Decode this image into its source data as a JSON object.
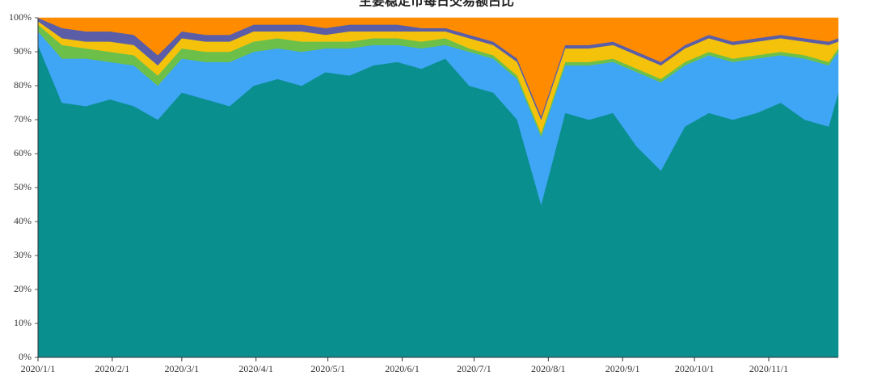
{
  "chart_data": {
    "type": "stacked-area",
    "title": "主要稳定币每日交易额占比",
    "x": [
      "2020/1/1",
      "2020/1/11",
      "2020/1/21",
      "2020/1/31",
      "2020/2/10",
      "2020/2/20",
      "2020/3/1",
      "2020/3/11",
      "2020/3/21",
      "2020/3/31",
      "2020/4/10",
      "2020/4/20",
      "2020/4/30",
      "2020/5/10",
      "2020/5/20",
      "2020/5/30",
      "2020/6/9",
      "2020/6/19",
      "2020/6/29",
      "2020/7/9",
      "2020/7/19",
      "2020/7/29",
      "2020/8/8",
      "2020/8/18",
      "2020/8/28",
      "2020/9/7",
      "2020/9/17",
      "2020/9/27",
      "2020/10/7",
      "2020/10/17",
      "2020/10/27",
      "2020/11/6",
      "2020/11/16",
      "2020/11/26",
      "2020/11/30"
    ],
    "series": [
      {
        "color": "#0a8f8f",
        "values": [
          92,
          75,
          74,
          76,
          74,
          70,
          78,
          76,
          74,
          80,
          82,
          80,
          84,
          83,
          86,
          87,
          85,
          88,
          80,
          78,
          70,
          45,
          72,
          70,
          72,
          62,
          55,
          68,
          72,
          70,
          72,
          75,
          70,
          68,
          78
        ]
      },
      {
        "color": "#3fa5f5",
        "values": [
          4,
          13,
          14,
          11,
          12,
          10,
          10,
          11,
          13,
          10,
          9,
          10,
          7,
          8,
          6,
          5,
          6,
          4,
          10,
          10,
          12,
          20,
          14,
          16,
          15,
          22,
          26,
          18,
          17,
          17,
          16,
          14,
          18,
          18,
          12
        ]
      },
      {
        "color": "#6cc04a",
        "values": [
          2,
          4,
          3,
          3,
          3,
          3,
          3,
          3,
          3,
          3,
          3,
          3,
          2,
          2,
          2,
          2,
          2,
          2,
          1,
          1,
          1,
          1,
          1,
          1,
          1,
          1,
          1,
          1,
          1,
          1,
          1,
          1,
          1,
          1,
          1
        ]
      },
      {
        "color": "#f5c20b",
        "values": [
          1,
          2,
          2,
          3,
          3,
          3,
          3,
          3,
          3,
          3,
          2,
          3,
          2,
          3,
          2,
          2,
          3,
          2,
          3,
          3,
          4,
          4,
          4,
          4,
          4,
          4,
          4,
          4,
          4,
          4,
          4,
          4,
          4,
          5,
          2
        ]
      },
      {
        "color": "#5b5ea6",
        "values": [
          1,
          3,
          3,
          3,
          3,
          3,
          2,
          2,
          2,
          2,
          2,
          2,
          2,
          2,
          2,
          2,
          1,
          1,
          1,
          1,
          1,
          1,
          1,
          1,
          1,
          1,
          1,
          1,
          1,
          1,
          1,
          1,
          1,
          1,
          1
        ]
      },
      {
        "color": "#ff8c00",
        "values": [
          0,
          3,
          4,
          4,
          5,
          11,
          4,
          5,
          5,
          2,
          2,
          2,
          3,
          2,
          2,
          2,
          3,
          3,
          5,
          7,
          12,
          29,
          8,
          8,
          7,
          10,
          13,
          8,
          5,
          7,
          6,
          5,
          6,
          7,
          6
        ]
      }
    ],
    "xlim": [
      "2020/1/1",
      "2020/11/30"
    ],
    "xticks": [
      "2020/1/1",
      "2020/2/1",
      "2020/3/1",
      "2020/4/1",
      "2020/5/1",
      "2020/6/1",
      "2020/7/1",
      "2020/8/1",
      "2020/9/1",
      "2020/10/1",
      "2020/11/1"
    ],
    "ylim": [
      0,
      100
    ],
    "yticks": [
      {
        "value": 0,
        "label": "0%"
      },
      {
        "value": 10,
        "label": "10%"
      },
      {
        "value": 20,
        "label": "20%"
      },
      {
        "value": 30,
        "label": "30%"
      },
      {
        "value": 40,
        "label": "40%"
      },
      {
        "value": 50,
        "label": "50%"
      },
      {
        "value": 60,
        "label": "60%"
      },
      {
        "value": 70,
        "label": "70%"
      },
      {
        "value": 80,
        "label": "80%"
      },
      {
        "value": 90,
        "label": "90%"
      },
      {
        "value": 100,
        "label": "100%"
      }
    ]
  }
}
